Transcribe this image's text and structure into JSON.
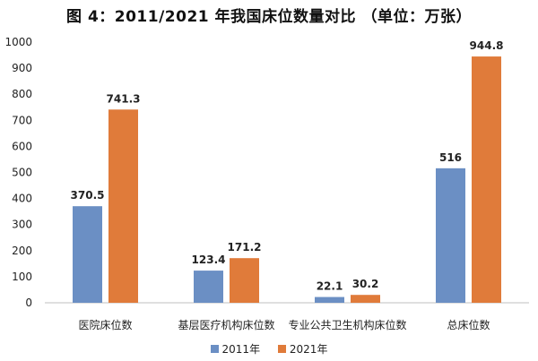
{
  "chart_data": {
    "type": "bar",
    "title": "图 4：2011/2021 年我国床位数量对比 （单位：万张）",
    "categories": [
      "医院床位数",
      "基层医疗机构床位数",
      "专业公共卫生机构床位数",
      "总床位数"
    ],
    "series": [
      {
        "name": "2011年",
        "values": [
          370.5,
          123.4,
          22.1,
          516
        ],
        "labels": [
          "370.5",
          "123.4",
          "22.1",
          "516"
        ],
        "color": "#6b8fc4"
      },
      {
        "name": "2021年",
        "values": [
          741.3,
          171.2,
          30.2,
          944.8
        ],
        "labels": [
          "741.3",
          "171.2",
          "30.2",
          "944.8"
        ],
        "color": "#e07b3a"
      }
    ],
    "yticks": [
      "0",
      "100",
      "200",
      "300",
      "400",
      "500",
      "600",
      "700",
      "800",
      "900",
      "1000"
    ],
    "ylim": [
      0,
      1000
    ],
    "grid": false,
    "legend": "bottom-center"
  }
}
